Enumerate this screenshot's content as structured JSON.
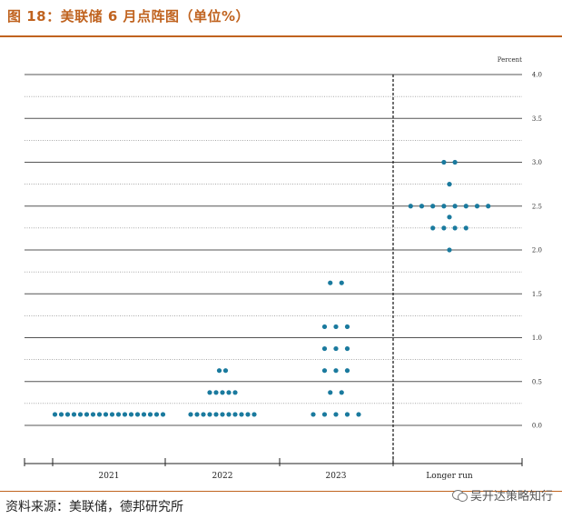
{
  "header": {
    "title": "图 18：美联储 6 月点阵图（单位%）"
  },
  "footer": {
    "source": "资料来源：美联储，德邦研究所",
    "watermark": "吴开达策略知行"
  },
  "colors": {
    "dot": "#1a7a9e",
    "accent": "#c0631f",
    "grid": "#555555"
  },
  "chart_data": {
    "type": "scatter",
    "title": "",
    "ylabel": "Percent",
    "ylim": [
      -0.5,
      4.0
    ],
    "yticks": [
      "0.0",
      "0.5",
      "1.0",
      "1.5",
      "2.0",
      "2.5",
      "3.0",
      "3.5",
      "4.0"
    ],
    "grid": true,
    "categories": [
      "2021",
      "2022",
      "2023",
      "Longer run"
    ],
    "series": [
      {
        "category": "2021",
        "points": [
          {
            "y": 0.125,
            "count": 18
          }
        ]
      },
      {
        "category": "2022",
        "points": [
          {
            "y": 0.125,
            "count": 11
          },
          {
            "y": 0.375,
            "count": 5
          },
          {
            "y": 0.625,
            "count": 2
          }
        ]
      },
      {
        "category": "2023",
        "points": [
          {
            "y": 0.125,
            "count": 5
          },
          {
            "y": 0.375,
            "count": 2
          },
          {
            "y": 0.625,
            "count": 3
          },
          {
            "y": 0.875,
            "count": 3
          },
          {
            "y": 1.125,
            "count": 3
          },
          {
            "y": 1.625,
            "count": 2
          }
        ]
      },
      {
        "category": "Longer run",
        "points": [
          {
            "y": 2.0,
            "count": 1
          },
          {
            "y": 2.25,
            "count": 4
          },
          {
            "y": 2.375,
            "count": 1
          },
          {
            "y": 2.5,
            "count": 8
          },
          {
            "y": 2.75,
            "count": 1
          },
          {
            "y": 3.0,
            "count": 2
          }
        ]
      }
    ]
  }
}
